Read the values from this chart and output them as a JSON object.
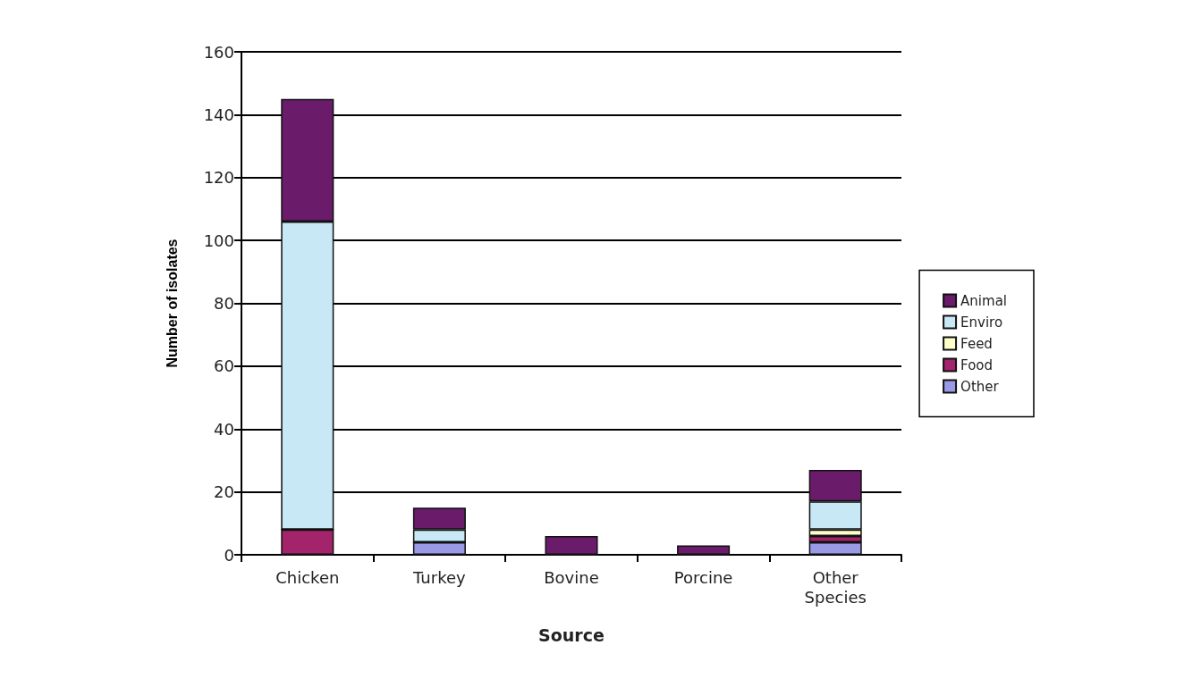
{
  "chart_data": {
    "type": "bar",
    "xlabel": "Source",
    "ylabel": "Number of isolates",
    "categories": [
      "Chicken",
      "Turkey",
      "Bovine",
      "Porcine",
      "Other\nSpecies"
    ],
    "stacked": true,
    "series": [
      {
        "name": "Other",
        "color": "#9999e6",
        "values": [
          0,
          4,
          0,
          0,
          4
        ]
      },
      {
        "name": "Food",
        "color": "#a3246a",
        "values": [
          8,
          0,
          0,
          0,
          2
        ]
      },
      {
        "name": "Feed",
        "color": "#ffffcc",
        "values": [
          0,
          0,
          0,
          0,
          2
        ]
      },
      {
        "name": "Enviro",
        "color": "#c8e8f5",
        "values": [
          98,
          4,
          0,
          0,
          9
        ]
      },
      {
        "name": "Animal",
        "color": "#6a1b6a",
        "values": [
          39,
          7,
          6,
          3,
          10
        ]
      }
    ],
    "ylim": [
      0,
      160
    ],
    "yticks": [
      0,
      20,
      40,
      60,
      80,
      100,
      120,
      140,
      160
    ],
    "grid": "y",
    "legend": "right"
  }
}
